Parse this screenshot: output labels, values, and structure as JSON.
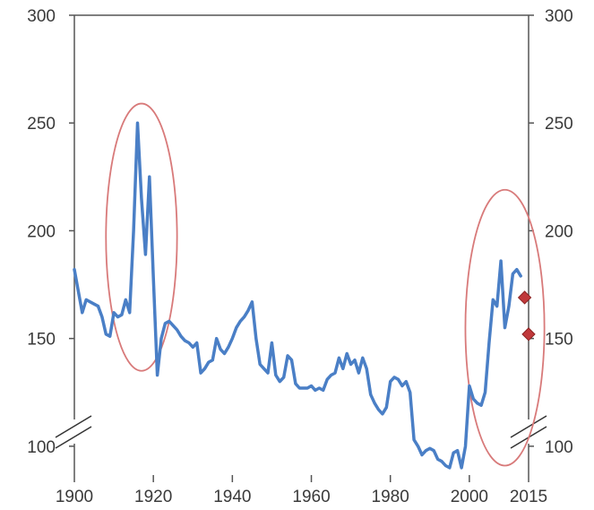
{
  "chart_data": {
    "type": "line",
    "title": "",
    "xlabel": "",
    "ylabel": "",
    "xlim": [
      1900,
      2015
    ],
    "ylim": [
      70,
      300
    ],
    "axis_break": true,
    "grid": false,
    "x_ticks": [
      "1900",
      "1920",
      "1940",
      "1960",
      "1980",
      "2000",
      "2015"
    ],
    "x_tick_values": [
      1900,
      1920,
      1940,
      1960,
      1980,
      2000,
      2015
    ],
    "y_ticks_left": [
      "100",
      "150",
      "200",
      "250",
      "300"
    ],
    "y_ticks_right": [
      "100",
      "150",
      "200",
      "250",
      "300"
    ],
    "y_tick_values": [
      100,
      150,
      200,
      250,
      300
    ],
    "line_color": "#4a7fc6",
    "marker_color": "#c0393b",
    "ellipse_color": "#d87a7a",
    "series": [
      {
        "x": [
          1900,
          1901,
          1902,
          1903,
          1904,
          1905,
          1906,
          1907,
          1908,
          1909,
          1910,
          1911,
          1912,
          1913,
          1914,
          1915,
          1916,
          1917,
          1918,
          1919,
          1920,
          1921,
          1922,
          1923,
          1924,
          1925,
          1926,
          1927,
          1928,
          1929,
          1930,
          1931,
          1932,
          1933,
          1934,
          1935,
          1936,
          1937,
          1938,
          1939,
          1940,
          1941,
          1942,
          1943,
          1944,
          1945,
          1946,
          1947,
          1948,
          1949,
          1950,
          1951,
          1952,
          1953,
          1954,
          1955,
          1956,
          1957,
          1958,
          1959,
          1960,
          1961,
          1962,
          1963,
          1964,
          1965,
          1966,
          1967,
          1968,
          1969,
          1970,
          1971,
          1972,
          1973,
          1974,
          1975,
          1976,
          1977,
          1978,
          1979,
          1980,
          1981,
          1982,
          1983,
          1984,
          1985,
          1986,
          1987,
          1988,
          1989,
          1990,
          1991,
          1992,
          1993,
          1994,
          1995,
          1996,
          1997,
          1998,
          1999,
          2000,
          2001,
          2002,
          2003,
          2004,
          2005,
          2006,
          2007,
          2008,
          2009,
          2010,
          2011,
          2012,
          2013
        ],
        "values": [
          182,
          172,
          162,
          168,
          167,
          166,
          165,
          160,
          152,
          151,
          162,
          160,
          161,
          168,
          162,
          200,
          250,
          215,
          189,
          225,
          178,
          133,
          150,
          157,
          158,
          156,
          154,
          151,
          149,
          148,
          146,
          148,
          134,
          136,
          139,
          140,
          150,
          145,
          143,
          146,
          150,
          155,
          158,
          160,
          163,
          167,
          150,
          138,
          136,
          134,
          148,
          133,
          130,
          132,
          142,
          140,
          129,
          127,
          127,
          127,
          128,
          126,
          127,
          126,
          131,
          133,
          134,
          141,
          136,
          143,
          138,
          140,
          134,
          141,
          136,
          124,
          120,
          117,
          115,
          118,
          130,
          132,
          131,
          128,
          130,
          125,
          103,
          100,
          96,
          98,
          99,
          98,
          94,
          93,
          91,
          90,
          97,
          98,
          90,
          100,
          128,
          122,
          120,
          119,
          125,
          148,
          168,
          165,
          186,
          155,
          165,
          180,
          182,
          179
        ]
      }
    ],
    "markers": [
      {
        "x": 2014,
        "y": 169
      },
      {
        "x": 2015,
        "y": 152
      }
    ],
    "ellipses": [
      {
        "x_center": 1917,
        "y_center": 197,
        "x_radius": 9,
        "y_radius": 62
      },
      {
        "x_center": 2009,
        "y_center": 155,
        "x_radius": 10,
        "y_radius": 64
      }
    ]
  }
}
